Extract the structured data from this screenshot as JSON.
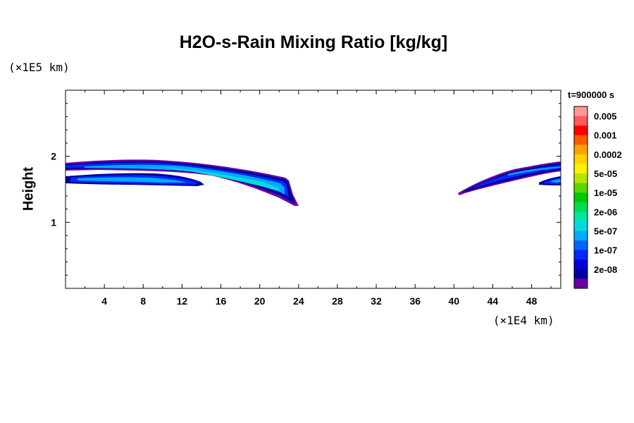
{
  "chart_data": {
    "type": "contour",
    "title": "H2O-s-Rain Mixing Ratio [kg/kg]",
    "xlabel": "",
    "ylabel": "Height",
    "x_unit": "(×1E4 km)",
    "y_unit": "(×1E5 km)",
    "xlim": [
      0,
      51
    ],
    "ylim": [
      0,
      3
    ],
    "x_ticks": [
      4,
      8,
      12,
      16,
      20,
      24,
      28,
      32,
      36,
      40,
      44,
      48
    ],
    "y_ticks": [
      1,
      2
    ],
    "time_label": "t=900000 s",
    "colorbar": {
      "labels": [
        "0.005",
        "0.001",
        "0.0002",
        "5e-05",
        "1e-05",
        "2e-06",
        "5e-07",
        "1e-07",
        "2e-08"
      ],
      "colors": [
        "#ff9999",
        "#ff5a5a",
        "#ff0000",
        "#ff5a00",
        "#ffa000",
        "#ffd200",
        "#fff000",
        "#b4e600",
        "#5ad700",
        "#00c800",
        "#00dc50",
        "#00e6a0",
        "#00dcdc",
        "#00aaff",
        "#0064ff",
        "#0028ff",
        "#0000dc",
        "#0000a0",
        "#6e00a0"
      ]
    },
    "features": [
      {
        "name": "upper-band-left",
        "x_range": [
          0,
          23.8
        ],
        "y_range": [
          1.25,
          1.93
        ]
      },
      {
        "name": "lower-band-left",
        "x_range": [
          0,
          14.3
        ],
        "y_range": [
          1.55,
          1.75
        ]
      },
      {
        "name": "band-right",
        "x_range": [
          40.5,
          51
        ],
        "y_range": [
          1.42,
          1.9
        ]
      },
      {
        "name": "lower-band-right",
        "x_range": [
          49,
          51
        ],
        "y_range": [
          1.55,
          1.68
        ]
      }
    ]
  }
}
